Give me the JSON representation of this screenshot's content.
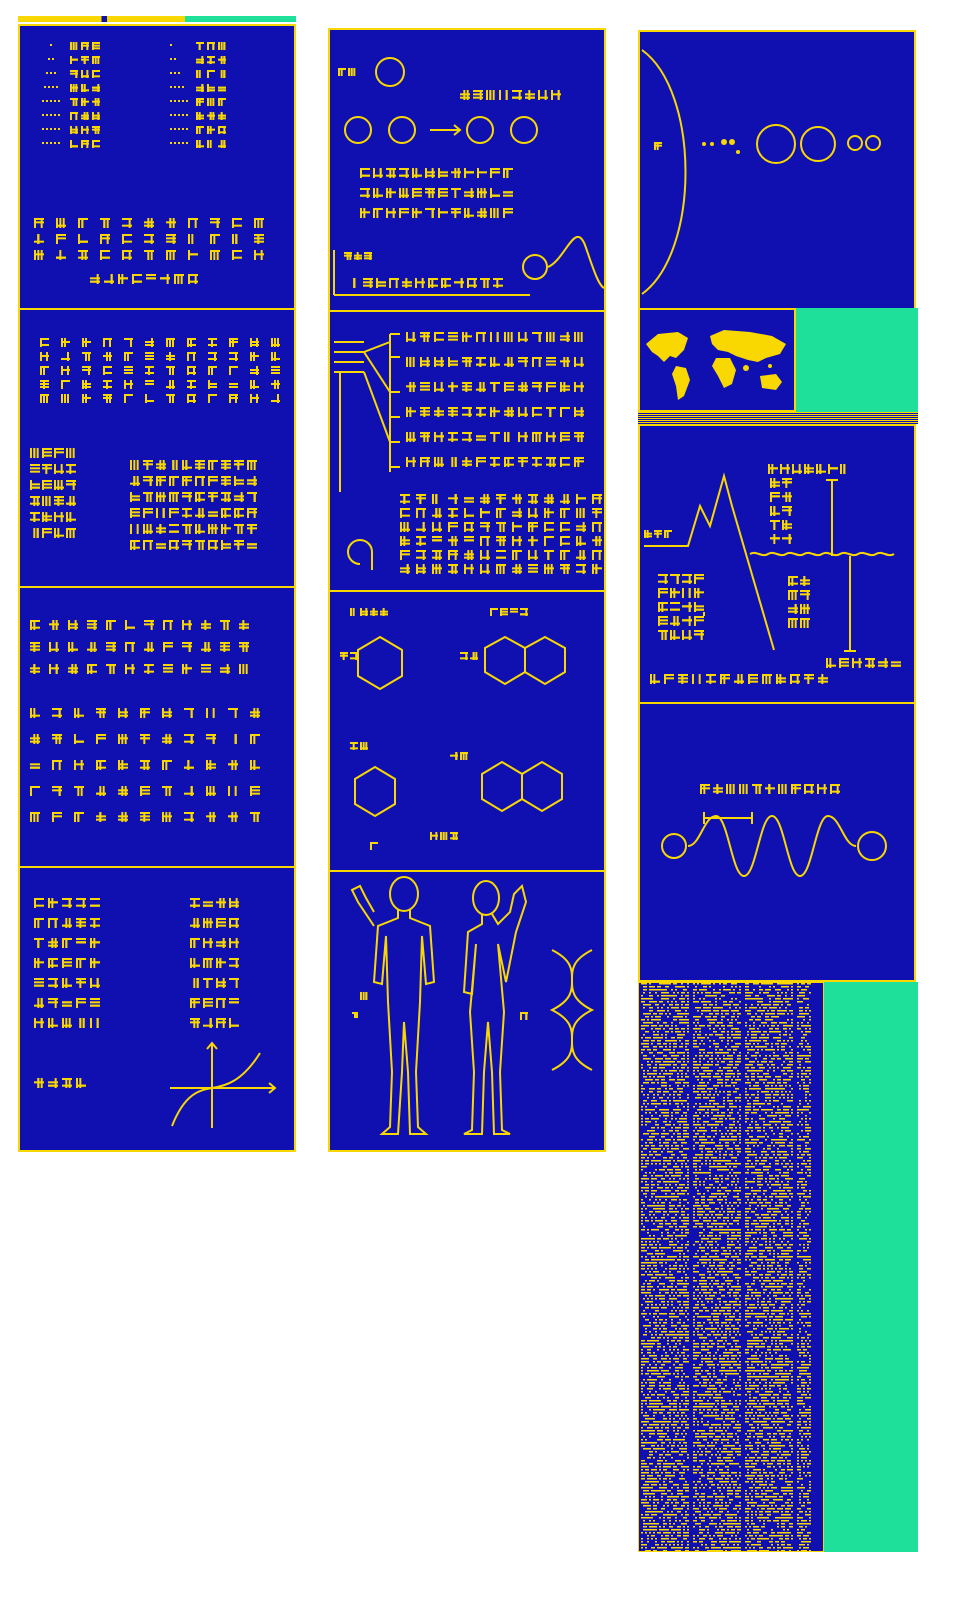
{
  "colors": {
    "background": "#1010B0",
    "foreground": "#F8D800",
    "accent_teal": "#1FE09A",
    "page": "#FFFFFF"
  },
  "columns": [
    {
      "name": "column-1",
      "panels": [
        "number-counting",
        "arithmetic-symbols",
        "powers-and-exponents",
        "functions-and-graph"
      ]
    },
    {
      "name": "column-2",
      "panels": [
        "hydrogen-atom",
        "spectral-lines",
        "molecular-structures",
        "human-figures-and-dna"
      ]
    },
    {
      "name": "column-3",
      "panels": [
        "solar-system",
        "world-map",
        "earth-profile",
        "radio-wave",
        "data-table"
      ]
    }
  ],
  "icons": [
    "hydrogen-atom-icon",
    "planet-icon",
    "globe-icon",
    "dna-helix-icon",
    "human-male-icon",
    "human-female-icon",
    "wave-icon",
    "axes-icon"
  ]
}
